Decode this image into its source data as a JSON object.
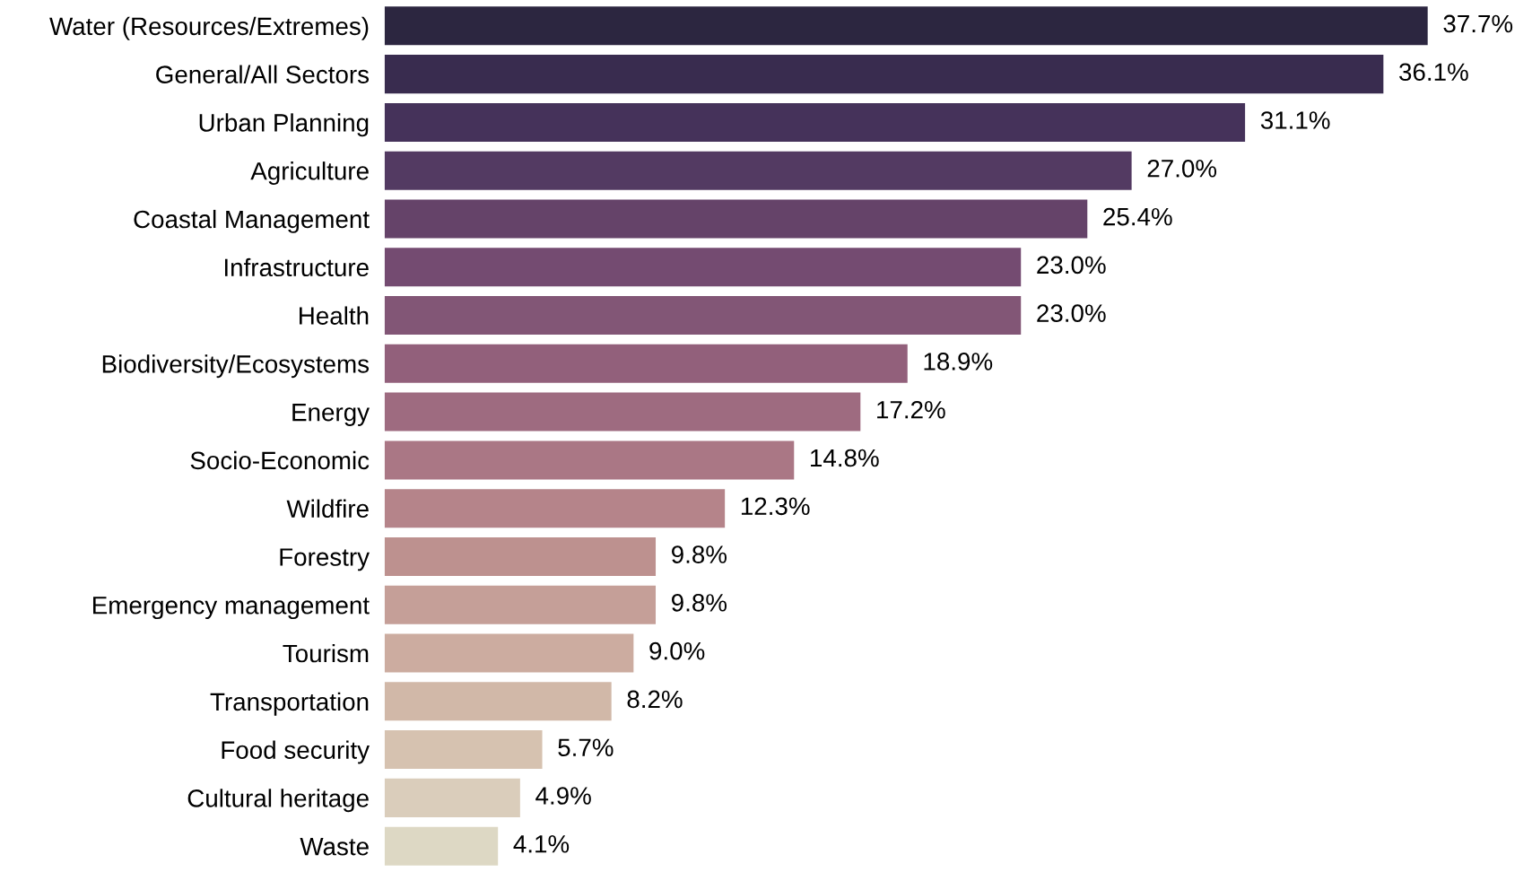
{
  "chart_data": {
    "type": "bar",
    "orientation": "horizontal",
    "grid": false,
    "legend": false,
    "categories": [
      "Water (Resources/Extremes)",
      "General/All Sectors",
      "Urban Planning",
      "Agriculture",
      "Coastal Management",
      "Infrastructure",
      "Health",
      "Biodiversity/Ecosystems",
      "Energy",
      "Socio-Economic",
      "Wildfire",
      "Forestry",
      "Emergency management",
      "Tourism",
      "Transportation",
      "Food security",
      "Cultural heritage",
      "Waste"
    ],
    "values": [
      37.7,
      36.1,
      31.1,
      27.0,
      25.4,
      23.0,
      23.0,
      18.9,
      17.2,
      14.8,
      12.3,
      9.8,
      9.8,
      9.0,
      8.2,
      5.7,
      4.9,
      4.1
    ],
    "value_labels": [
      "37.7%",
      "36.1%",
      "31.1%",
      "27.0%",
      "25.4%",
      "23.0%",
      "23.0%",
      "18.9%",
      "17.2%",
      "14.8%",
      "12.3%",
      "9.8%",
      "9.8%",
      "9.0%",
      "8.2%",
      "5.7%",
      "4.9%",
      "4.1%"
    ],
    "colors": [
      "#2c2640",
      "#392c4f",
      "#45325a",
      "#533a62",
      "#654369",
      "#744b71",
      "#825676",
      "#92607b",
      "#9e6b80",
      "#aa7785",
      "#b5848a",
      "#bd918f",
      "#c59f98",
      "#ccaca0",
      "#d1b8a8",
      "#d6c2b0",
      "#dacdbb",
      "#ddd8c4"
    ]
  }
}
